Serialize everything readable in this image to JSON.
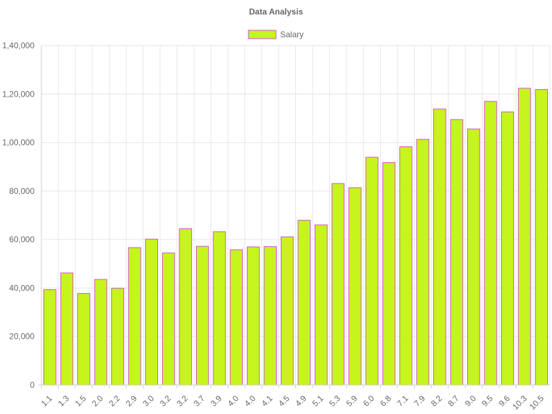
{
  "chart_data": {
    "type": "bar",
    "title": "Data Analysis",
    "xlabel": "",
    "ylabel": "",
    "ylim": [
      0,
      140000
    ],
    "yticks": [
      0,
      20000,
      40000,
      60000,
      80000,
      100000,
      120000,
      140000
    ],
    "ytick_labels": [
      "0",
      "20,000",
      "40,000",
      "60,000",
      "80,000",
      "1,00,000",
      "1,20,000",
      "1,40,000"
    ],
    "grid": true,
    "legend_position": "top-center",
    "categories": [
      "1.1",
      "1.3",
      "1.5",
      "2.0",
      "2.2",
      "2.9",
      "3.0",
      "3.2",
      "3.2",
      "3.7",
      "3.9",
      "4.0",
      "4.0",
      "4.1",
      "4.5",
      "4.9",
      "5.1",
      "5.3",
      "5.9",
      "6.0",
      "6.8",
      "7.1",
      "7.9",
      "8.2",
      "8.7",
      "9.0",
      "9.5",
      "9.6",
      "10.3",
      "10.5"
    ],
    "series": [
      {
        "name": "Salary",
        "color": "#c5f51d",
        "border_color": "#d64fc7",
        "values": [
          39343,
          46205,
          37731,
          43525,
          39891,
          56642,
          60150,
          54445,
          64445,
          57189,
          63218,
          55794,
          56957,
          57081,
          61111,
          67938,
          66029,
          83088,
          81363,
          93940,
          91738,
          98273,
          101302,
          113812,
          109431,
          105582,
          116969,
          112635,
          122391,
          121872
        ]
      }
    ]
  }
}
